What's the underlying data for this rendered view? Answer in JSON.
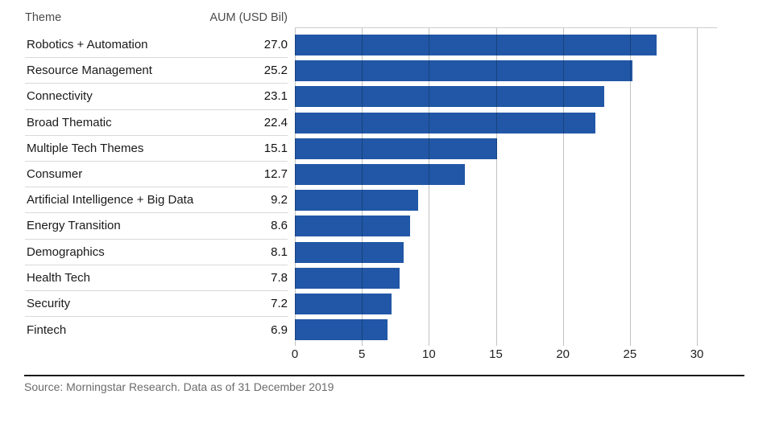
{
  "header": {
    "theme_label": "Theme",
    "aum_label": "AUM (USD Bil)"
  },
  "chart_data": {
    "type": "bar",
    "orientation": "horizontal",
    "title": "",
    "xlabel": "",
    "ylabel": "Theme",
    "categories": [
      "Robotics + Automation",
      "Resource Management",
      "Connectivity",
      "Broad Thematic",
      "Multiple Tech Themes",
      "Consumer",
      "Artificial Intelligence + Big Data",
      "Energy Transition",
      "Demographics",
      "Health Tech",
      "Security",
      "Fintech"
    ],
    "values": [
      27.0,
      25.2,
      23.1,
      22.4,
      15.1,
      12.7,
      9.2,
      8.6,
      8.1,
      7.8,
      7.2,
      6.9
    ],
    "value_labels": [
      "27.0",
      "25.2",
      "23.1",
      "22.4",
      "15.1",
      "12.7",
      "9.2",
      "8.6",
      "8.1",
      "7.8",
      "7.2",
      "6.9"
    ],
    "xticks": [
      0,
      5,
      10,
      15,
      20,
      25,
      30
    ],
    "xlim": [
      0,
      31.5
    ],
    "grid": true,
    "legend": "none",
    "bar_color": "#2157A6",
    "gridline_color_over_white": "#c2c2c2"
  },
  "footer": {
    "source": "Source: Morningstar Research. Data as of 31 December 2019"
  }
}
